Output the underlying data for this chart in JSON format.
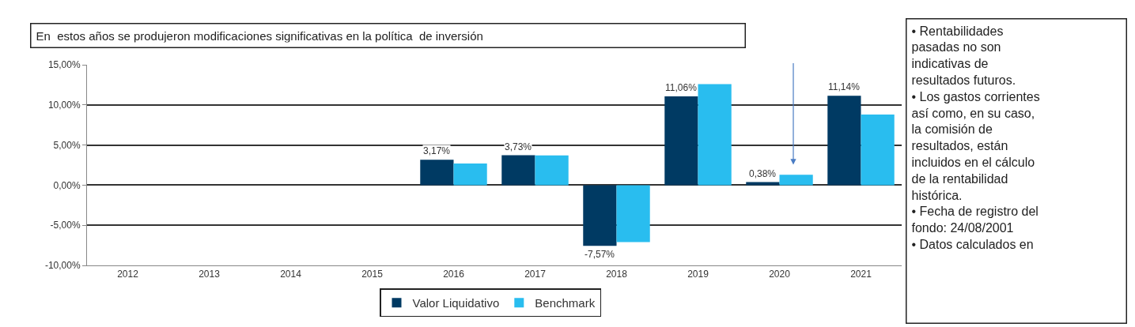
{
  "chart_data": {
    "type": "bar",
    "title": "En  estos años se produjeron modificaciones significativas en la política  de inversión",
    "categories": [
      "2012",
      "2013",
      "2014",
      "2015",
      "2016",
      "2017",
      "2018",
      "2019",
      "2020",
      "2021"
    ],
    "series": [
      {
        "name": "Valor Liquidativo",
        "color": "#003a63",
        "values": [
          null,
          null,
          null,
          null,
          3.17,
          3.73,
          -7.57,
          11.06,
          0.38,
          11.14
        ],
        "value_labels": [
          null,
          null,
          null,
          null,
          "3,17%",
          "3,73%",
          "-7,57%",
          "11,06%",
          "0,38%",
          "11,14%"
        ]
      },
      {
        "name": "Benchmark",
        "color": "#29bdef",
        "values": [
          null,
          null,
          null,
          null,
          2.7,
          3.7,
          -7.1,
          12.6,
          1.3,
          8.8
        ]
      }
    ],
    "ylim": [
      -10,
      15
    ],
    "yticks": [
      {
        "value": -10,
        "label": "-10,00%"
      },
      {
        "value": -5,
        "label": "-5,00%"
      },
      {
        "value": 0,
        "label": "0,00%"
      },
      {
        "value": 5,
        "label": "5,00%"
      },
      {
        "value": 10,
        "label": "10,00%"
      },
      {
        "value": 15,
        "label": "15,00%"
      }
    ],
    "grid": "y",
    "legend": "bottom",
    "annotations": [
      "• Rentabilidades\npasadas no son\nindicativas de\nresultados futuros.\n• Los gastos corrientes\nasí como, en su caso,\nla comisión de\nresultados, están\nincluidos en el cálculo\nde la rentabilidad\nhistórica.\n• Fecha de registro del\nfondo: 24/08/2001\n• Datos calculados en"
    ]
  }
}
